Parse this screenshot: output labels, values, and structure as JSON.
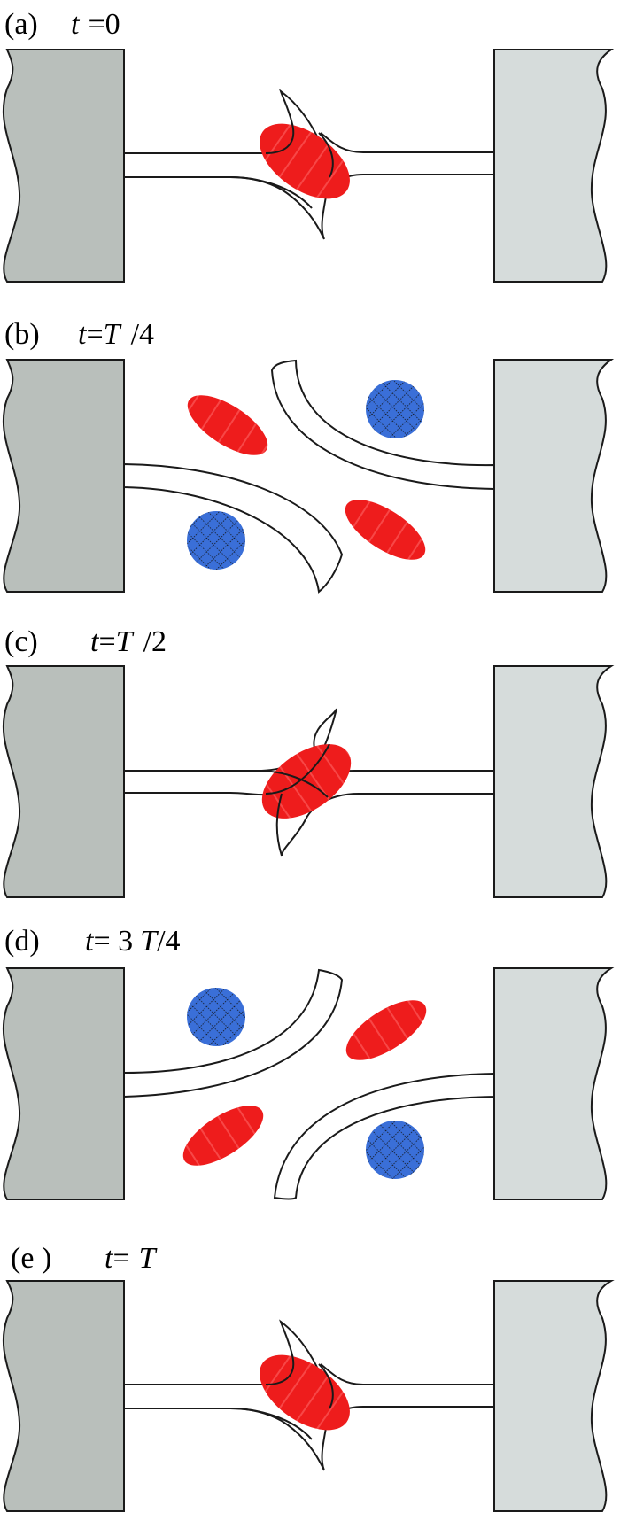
{
  "figure": {
    "colors": {
      "left_block": "#b9bfbb",
      "right_block": "#d6dcdb",
      "red_blob": "#ee1c1c",
      "blue_disk": "#3a6fd8",
      "outline": "#1a1a1a",
      "background": "#ffffff"
    },
    "panels": [
      {
        "id": "a",
        "label": "(a)",
        "time": {
          "t": "t",
          "eq": "=0"
        }
      },
      {
        "id": "b",
        "label": "(b)",
        "time": {
          "t": "t",
          "eq": "=",
          "T": "T",
          "rest": "/4"
        }
      },
      {
        "id": "c",
        "label": "(c)",
        "time": {
          "t": "t",
          "eq": "=",
          "T": "T",
          "rest": "/2"
        }
      },
      {
        "id": "d",
        "label": "(d)",
        "time": {
          "t": "t",
          "eq": "= 3",
          "T": "T",
          "rest": "/4"
        }
      },
      {
        "id": "e",
        "label": "(e )",
        "time": {
          "t": "t",
          "eq": "=",
          "T": "T",
          "rest": ""
        }
      }
    ]
  }
}
